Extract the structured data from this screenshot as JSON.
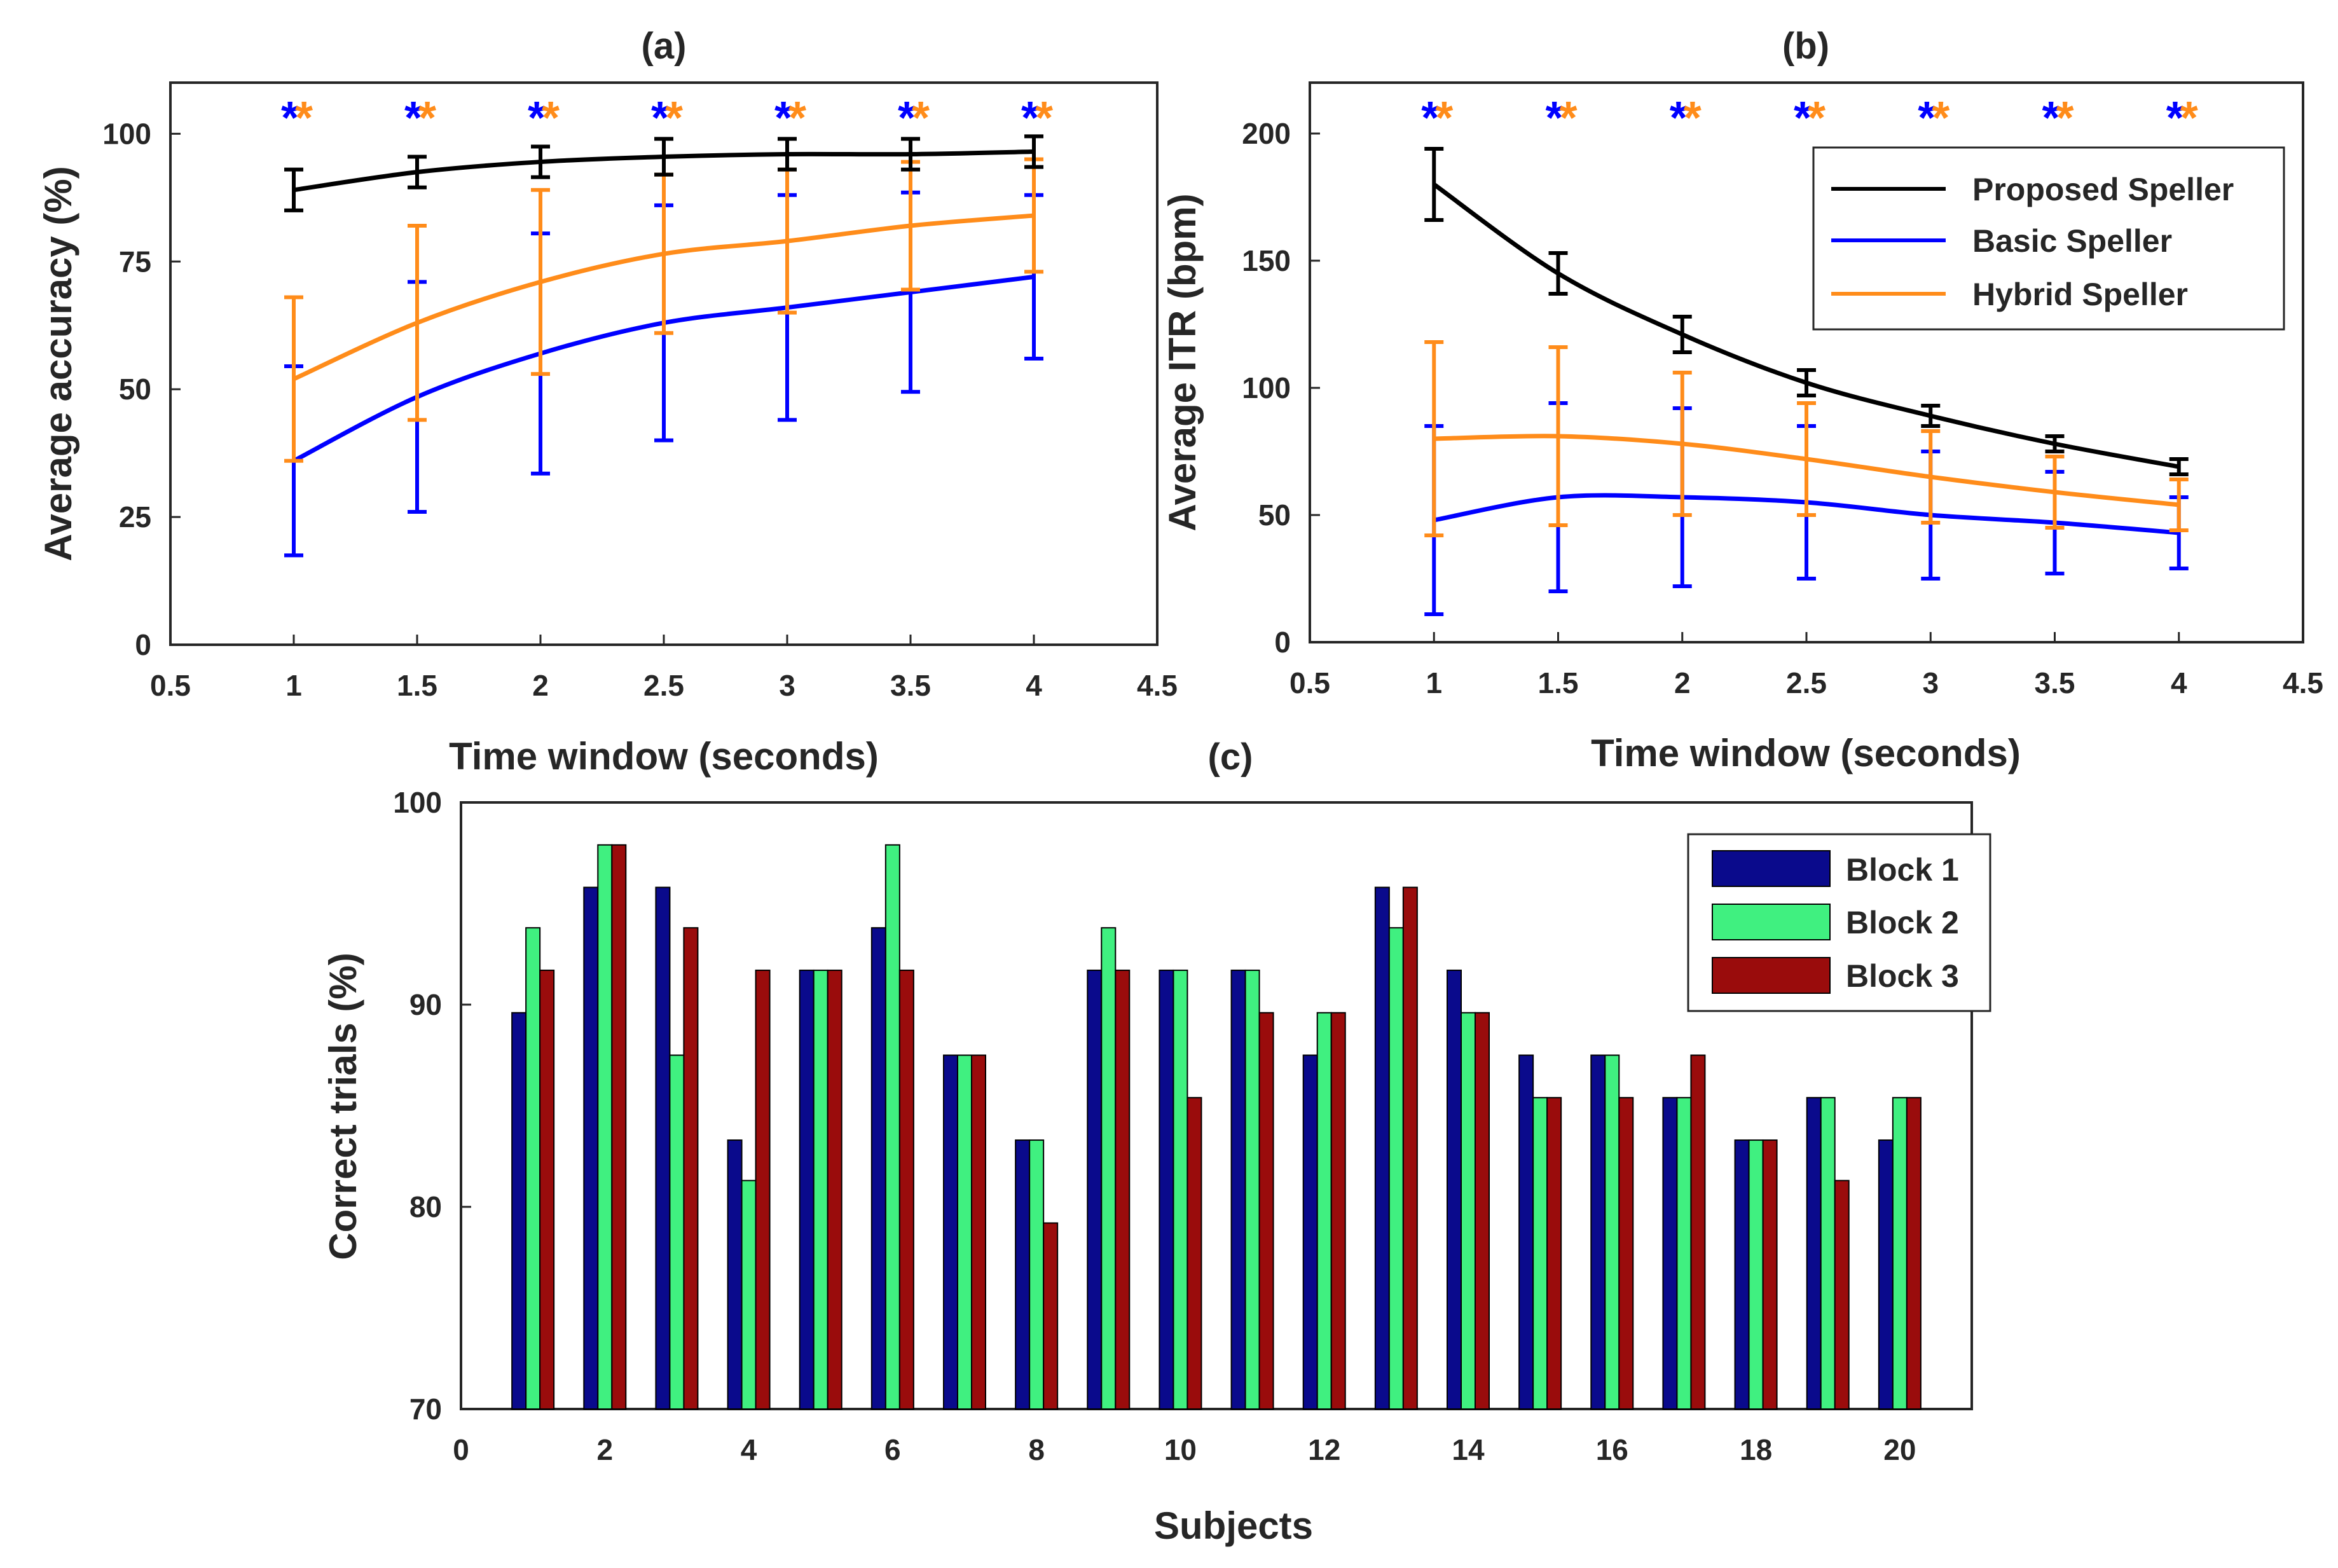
{
  "chart_data": [
    {
      "id": "a",
      "type": "line",
      "title": "(a)",
      "xlabel": "Time window (seconds)",
      "ylabel": "Average accuracy (%)",
      "xlim": [
        0.5,
        4.5
      ],
      "ylim": [
        0,
        110
      ],
      "xticks": [
        0.5,
        1,
        1.5,
        2,
        2.5,
        3,
        3.5,
        4,
        4.5
      ],
      "xtick_labels": [
        "0.5",
        "1",
        "1.5",
        "2",
        "2.5",
        "3",
        "3.5",
        "4",
        "4.5"
      ],
      "yticks": [
        0,
        25,
        50,
        75,
        100
      ],
      "ytick_labels": [
        "0",
        "25",
        "50",
        "75",
        "100"
      ],
      "x": [
        1,
        1.5,
        2,
        2.5,
        3,
        3.5,
        4
      ],
      "series": [
        {
          "name": "Proposed Speller",
          "color": "#000000",
          "values": [
            89,
            92.5,
            94.5,
            95.5,
            96,
            96,
            96.5
          ],
          "err": [
            4,
            3,
            3,
            3.5,
            3,
            3,
            3
          ]
        },
        {
          "name": "Basic Speller",
          "color": "#0000ff",
          "values": [
            36,
            48.5,
            57,
            63,
            66,
            69,
            72
          ],
          "err": [
            18.5,
            22.5,
            23.5,
            23,
            22,
            19.5,
            16
          ]
        },
        {
          "name": "Hybrid Speller",
          "color": "#ff8c1a",
          "values": [
            52,
            63,
            71,
            76.5,
            79,
            82,
            84
          ],
          "err": [
            16,
            19,
            18,
            15.5,
            14,
            12.5,
            11
          ]
        }
      ],
      "significance_marks": {
        "x": [
          1,
          1.5,
          2,
          2.5,
          3,
          3.5,
          4
        ],
        "symbols": [
          "*",
          "*"
        ],
        "colors": [
          "#0000ff",
          "#ff8c1a"
        ]
      },
      "legend": "none"
    },
    {
      "id": "b",
      "type": "line",
      "title": "(b)",
      "xlabel": "Time window (seconds)",
      "ylabel": "Average ITR (bpm)",
      "xlim": [
        0.5,
        4.5
      ],
      "ylim": [
        0,
        220
      ],
      "xticks": [
        0.5,
        1,
        1.5,
        2,
        2.5,
        3,
        3.5,
        4,
        4.5
      ],
      "xtick_labels": [
        "0.5",
        "1",
        "1.5",
        "2",
        "2.5",
        "3",
        "3.5",
        "4",
        "4.5"
      ],
      "yticks": [
        0,
        50,
        100,
        150,
        200
      ],
      "ytick_labels": [
        "0",
        "50",
        "100",
        "150",
        "200"
      ],
      "x": [
        1,
        1.5,
        2,
        2.5,
        3,
        3.5,
        4
      ],
      "series": [
        {
          "name": "Proposed Speller",
          "color": "#000000",
          "values": [
            180,
            145,
            121,
            102,
            89,
            78,
            69
          ],
          "err": [
            14,
            8,
            7,
            5,
            4,
            3,
            3
          ]
        },
        {
          "name": "Basic Speller",
          "color": "#0000ff",
          "values": [
            48,
            57,
            57,
            55,
            50,
            47,
            43
          ],
          "err": [
            37,
            37,
            35,
            30,
            25,
            20,
            14
          ]
        },
        {
          "name": "Hybrid Speller",
          "color": "#ff8c1a",
          "values": [
            80,
            81,
            78,
            72,
            65,
            59,
            54
          ],
          "err": [
            38,
            35,
            28,
            22,
            18,
            14,
            10
          ]
        }
      ],
      "significance_marks": {
        "x": [
          1,
          1.5,
          2,
          2.5,
          3,
          3.5,
          4
        ],
        "symbols": [
          "*",
          "*"
        ],
        "colors": [
          "#0000ff",
          "#ff8c1a"
        ]
      },
      "legend": "top-right"
    },
    {
      "id": "c",
      "type": "bar",
      "title": "(c)",
      "xlabel": "Subjects",
      "ylabel": "Correct trials (%)",
      "xlim": [
        0,
        21
      ],
      "ylim": [
        70,
        100
      ],
      "xticks": [
        0,
        2,
        4,
        6,
        8,
        10,
        12,
        14,
        16,
        18,
        20
      ],
      "xtick_labels": [
        "0",
        "2",
        "4",
        "6",
        "8",
        "10",
        "12",
        "14",
        "16",
        "18",
        "20"
      ],
      "yticks": [
        70,
        80,
        90,
        100
      ],
      "ytick_labels": [
        "70",
        "80",
        "90",
        "100"
      ],
      "categories": [
        1,
        2,
        3,
        4,
        5,
        6,
        7,
        8,
        9,
        10,
        11,
        12,
        13,
        14,
        15,
        16,
        17,
        18,
        19,
        20
      ],
      "series": [
        {
          "name": "Block 1",
          "color": "#0a0a8c",
          "values": [
            89.6,
            95.8,
            95.8,
            83.3,
            91.7,
            93.8,
            87.5,
            83.3,
            91.7,
            91.7,
            91.7,
            87.5,
            95.8,
            91.7,
            87.5,
            87.5,
            85.4,
            83.3,
            85.4,
            83.3
          ]
        },
        {
          "name": "Block 2",
          "color": "#40f080",
          "values": [
            93.8,
            97.9,
            87.5,
            81.3,
            91.7,
            97.9,
            87.5,
            83.3,
            93.8,
            91.7,
            91.7,
            89.6,
            93.8,
            89.6,
            85.4,
            87.5,
            85.4,
            83.3,
            85.4,
            85.4
          ]
        },
        {
          "name": "Block 3",
          "color": "#9a0c0c",
          "values": [
            91.7,
            97.9,
            93.8,
            91.7,
            91.7,
            91.7,
            87.5,
            79.2,
            91.7,
            85.4,
            89.6,
            89.6,
            95.8,
            89.6,
            85.4,
            85.4,
            87.5,
            83.3,
            81.3,
            85.4
          ]
        }
      ],
      "legend": "top-right"
    }
  ]
}
